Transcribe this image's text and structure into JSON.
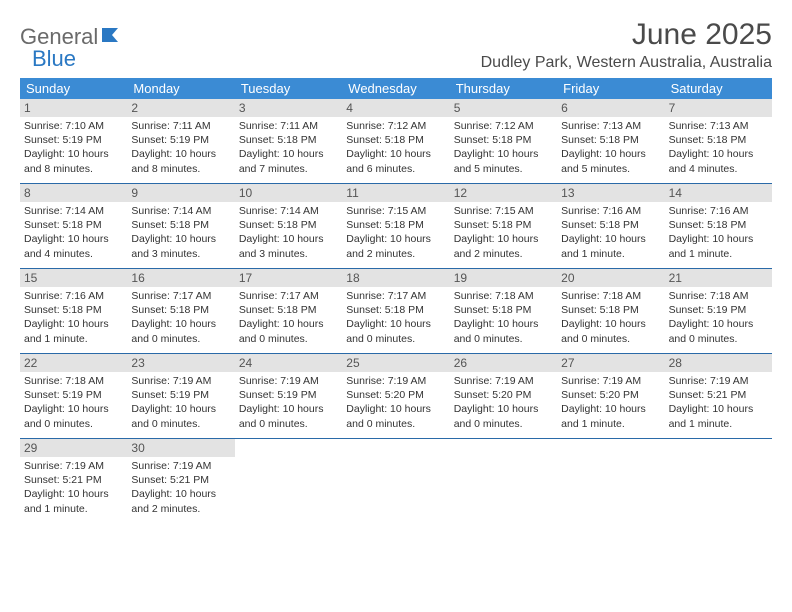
{
  "logo": {
    "word1": "General",
    "word2": "Blue"
  },
  "header": {
    "month_title": "June 2025",
    "location": "Dudley Park, Western Australia, Australia"
  },
  "colors": {
    "header_bg": "#3b8bd4",
    "header_text": "#ffffff",
    "daynum_bg": "#e3e3e3",
    "row_border": "#2a6aa8",
    "logo_gray": "#6a6a6a",
    "logo_blue": "#2a78c3"
  },
  "weekdays": [
    "Sunday",
    "Monday",
    "Tuesday",
    "Wednesday",
    "Thursday",
    "Friday",
    "Saturday"
  ],
  "weeks": [
    [
      {
        "num": "1",
        "sunrise": "Sunrise: 7:10 AM",
        "sunset": "Sunset: 5:19 PM",
        "day1": "Daylight: 10 hours",
        "day2": "and 8 minutes."
      },
      {
        "num": "2",
        "sunrise": "Sunrise: 7:11 AM",
        "sunset": "Sunset: 5:19 PM",
        "day1": "Daylight: 10 hours",
        "day2": "and 8 minutes."
      },
      {
        "num": "3",
        "sunrise": "Sunrise: 7:11 AM",
        "sunset": "Sunset: 5:18 PM",
        "day1": "Daylight: 10 hours",
        "day2": "and 7 minutes."
      },
      {
        "num": "4",
        "sunrise": "Sunrise: 7:12 AM",
        "sunset": "Sunset: 5:18 PM",
        "day1": "Daylight: 10 hours",
        "day2": "and 6 minutes."
      },
      {
        "num": "5",
        "sunrise": "Sunrise: 7:12 AM",
        "sunset": "Sunset: 5:18 PM",
        "day1": "Daylight: 10 hours",
        "day2": "and 5 minutes."
      },
      {
        "num": "6",
        "sunrise": "Sunrise: 7:13 AM",
        "sunset": "Sunset: 5:18 PM",
        "day1": "Daylight: 10 hours",
        "day2": "and 5 minutes."
      },
      {
        "num": "7",
        "sunrise": "Sunrise: 7:13 AM",
        "sunset": "Sunset: 5:18 PM",
        "day1": "Daylight: 10 hours",
        "day2": "and 4 minutes."
      }
    ],
    [
      {
        "num": "8",
        "sunrise": "Sunrise: 7:14 AM",
        "sunset": "Sunset: 5:18 PM",
        "day1": "Daylight: 10 hours",
        "day2": "and 4 minutes."
      },
      {
        "num": "9",
        "sunrise": "Sunrise: 7:14 AM",
        "sunset": "Sunset: 5:18 PM",
        "day1": "Daylight: 10 hours",
        "day2": "and 3 minutes."
      },
      {
        "num": "10",
        "sunrise": "Sunrise: 7:14 AM",
        "sunset": "Sunset: 5:18 PM",
        "day1": "Daylight: 10 hours",
        "day2": "and 3 minutes."
      },
      {
        "num": "11",
        "sunrise": "Sunrise: 7:15 AM",
        "sunset": "Sunset: 5:18 PM",
        "day1": "Daylight: 10 hours",
        "day2": "and 2 minutes."
      },
      {
        "num": "12",
        "sunrise": "Sunrise: 7:15 AM",
        "sunset": "Sunset: 5:18 PM",
        "day1": "Daylight: 10 hours",
        "day2": "and 2 minutes."
      },
      {
        "num": "13",
        "sunrise": "Sunrise: 7:16 AM",
        "sunset": "Sunset: 5:18 PM",
        "day1": "Daylight: 10 hours",
        "day2": "and 1 minute."
      },
      {
        "num": "14",
        "sunrise": "Sunrise: 7:16 AM",
        "sunset": "Sunset: 5:18 PM",
        "day1": "Daylight: 10 hours",
        "day2": "and 1 minute."
      }
    ],
    [
      {
        "num": "15",
        "sunrise": "Sunrise: 7:16 AM",
        "sunset": "Sunset: 5:18 PM",
        "day1": "Daylight: 10 hours",
        "day2": "and 1 minute."
      },
      {
        "num": "16",
        "sunrise": "Sunrise: 7:17 AM",
        "sunset": "Sunset: 5:18 PM",
        "day1": "Daylight: 10 hours",
        "day2": "and 0 minutes."
      },
      {
        "num": "17",
        "sunrise": "Sunrise: 7:17 AM",
        "sunset": "Sunset: 5:18 PM",
        "day1": "Daylight: 10 hours",
        "day2": "and 0 minutes."
      },
      {
        "num": "18",
        "sunrise": "Sunrise: 7:17 AM",
        "sunset": "Sunset: 5:18 PM",
        "day1": "Daylight: 10 hours",
        "day2": "and 0 minutes."
      },
      {
        "num": "19",
        "sunrise": "Sunrise: 7:18 AM",
        "sunset": "Sunset: 5:18 PM",
        "day1": "Daylight: 10 hours",
        "day2": "and 0 minutes."
      },
      {
        "num": "20",
        "sunrise": "Sunrise: 7:18 AM",
        "sunset": "Sunset: 5:18 PM",
        "day1": "Daylight: 10 hours",
        "day2": "and 0 minutes."
      },
      {
        "num": "21",
        "sunrise": "Sunrise: 7:18 AM",
        "sunset": "Sunset: 5:19 PM",
        "day1": "Daylight: 10 hours",
        "day2": "and 0 minutes."
      }
    ],
    [
      {
        "num": "22",
        "sunrise": "Sunrise: 7:18 AM",
        "sunset": "Sunset: 5:19 PM",
        "day1": "Daylight: 10 hours",
        "day2": "and 0 minutes."
      },
      {
        "num": "23",
        "sunrise": "Sunrise: 7:19 AM",
        "sunset": "Sunset: 5:19 PM",
        "day1": "Daylight: 10 hours",
        "day2": "and 0 minutes."
      },
      {
        "num": "24",
        "sunrise": "Sunrise: 7:19 AM",
        "sunset": "Sunset: 5:19 PM",
        "day1": "Daylight: 10 hours",
        "day2": "and 0 minutes."
      },
      {
        "num": "25",
        "sunrise": "Sunrise: 7:19 AM",
        "sunset": "Sunset: 5:20 PM",
        "day1": "Daylight: 10 hours",
        "day2": "and 0 minutes."
      },
      {
        "num": "26",
        "sunrise": "Sunrise: 7:19 AM",
        "sunset": "Sunset: 5:20 PM",
        "day1": "Daylight: 10 hours",
        "day2": "and 0 minutes."
      },
      {
        "num": "27",
        "sunrise": "Sunrise: 7:19 AM",
        "sunset": "Sunset: 5:20 PM",
        "day1": "Daylight: 10 hours",
        "day2": "and 1 minute."
      },
      {
        "num": "28",
        "sunrise": "Sunrise: 7:19 AM",
        "sunset": "Sunset: 5:21 PM",
        "day1": "Daylight: 10 hours",
        "day2": "and 1 minute."
      }
    ],
    [
      {
        "num": "29",
        "sunrise": "Sunrise: 7:19 AM",
        "sunset": "Sunset: 5:21 PM",
        "day1": "Daylight: 10 hours",
        "day2": "and 1 minute."
      },
      {
        "num": "30",
        "sunrise": "Sunrise: 7:19 AM",
        "sunset": "Sunset: 5:21 PM",
        "day1": "Daylight: 10 hours",
        "day2": "and 2 minutes."
      },
      null,
      null,
      null,
      null,
      null
    ]
  ]
}
